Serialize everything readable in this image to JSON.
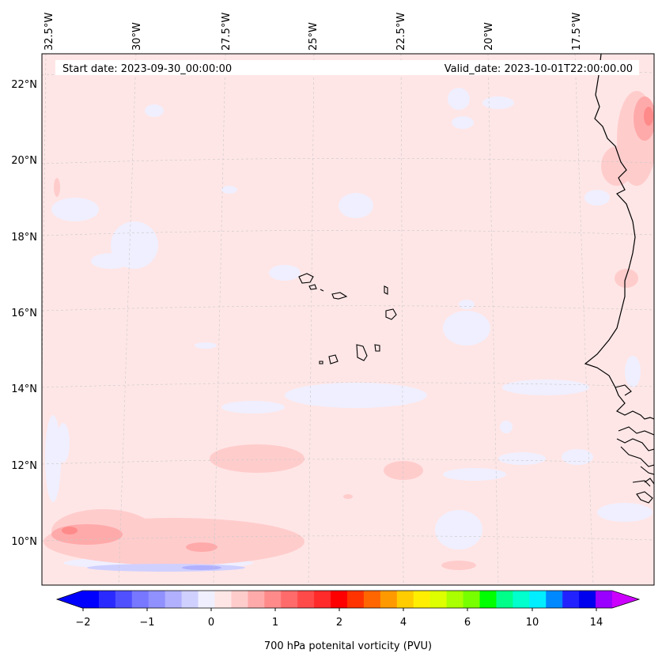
{
  "header": {
    "start_date": "Start date: 2023-09-30_00:00:00",
    "valid_date": "Valid_date: 2023-10-01T22:00:00.00"
  },
  "map": {
    "longitude_labels": [
      "32.5°W",
      "30°W",
      "27.5°W",
      "25°W",
      "22.5°W",
      "20°W",
      "17.5°W"
    ],
    "latitude_labels": [
      "22°N",
      "20°N",
      "18°N",
      "16°N",
      "14°N",
      "12°N",
      "10°N"
    ],
    "background_color": "#ffe6e6",
    "coastline_color": "#000000"
  },
  "colorbar": {
    "label": "700 hPa potenital vorticity (PVU)",
    "tick_labels": [
      "−2",
      "−1",
      "0",
      "1",
      "2",
      "4",
      "6",
      "10",
      "14"
    ],
    "colors": [
      "#0000ff",
      "#2a2aff",
      "#5050ff",
      "#7777ff",
      "#9090ff",
      "#b0b0ff",
      "#d0d0ff",
      "#efefff",
      "#ffe6e6",
      "#ffcccc",
      "#ffaaaa",
      "#ff8a8a",
      "#ff6a6a",
      "#ff4a4a",
      "#ff2a2a",
      "#ff0000",
      "#ff3300",
      "#ff6600",
      "#ff9900",
      "#ffcc00",
      "#ffee00",
      "#ddff00",
      "#aaff00",
      "#77ff00",
      "#00ff00",
      "#00ff88",
      "#00ffcc",
      "#00eeff",
      "#0088ff",
      "#2222ff",
      "#0000ee",
      "#9900ff"
    ],
    "extend_min_color": "#0000ff",
    "extend_max_color": "#cc00ff"
  }
}
